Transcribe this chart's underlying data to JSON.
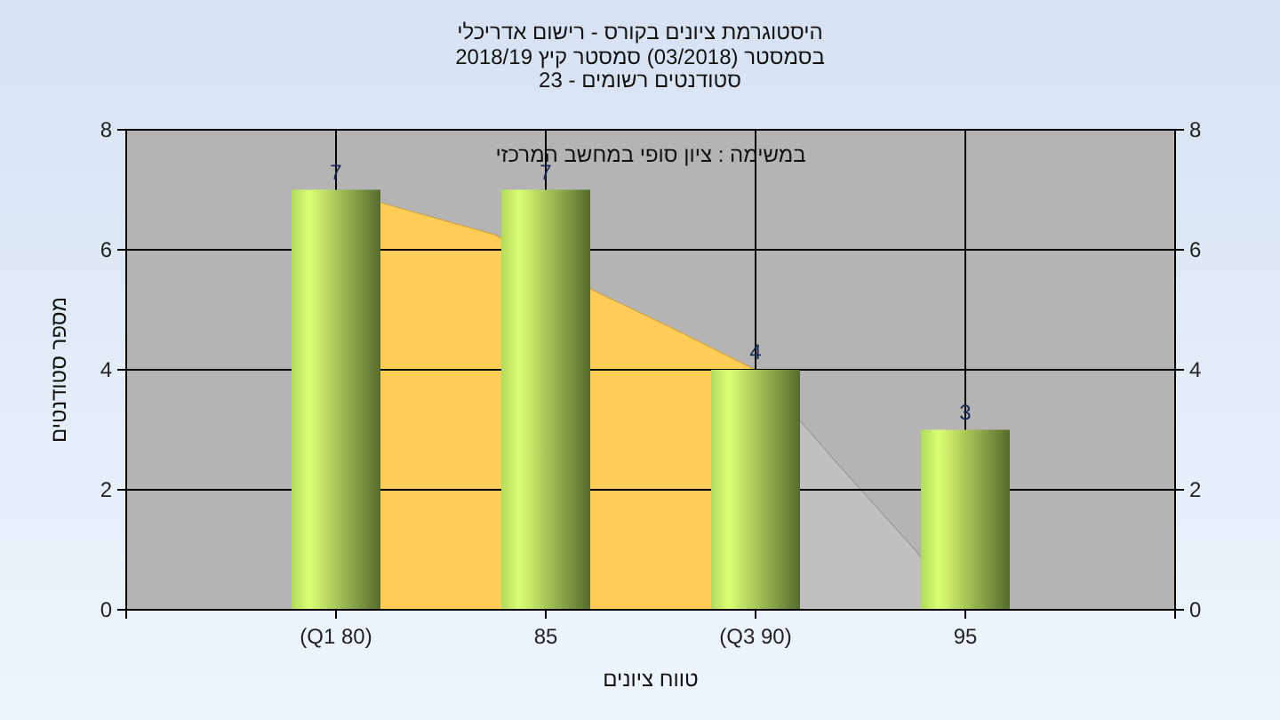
{
  "chart_data": {
    "type": "bar",
    "title": "היסטוגרמת ציונים בקורס - רישום אדריכלי",
    "subtitle": "בסמסטר  (03/2018)  סמסטר קיץ 2018/19\nסטודנטים רשומים - 23",
    "xlabel": "טווח ציונים",
    "ylabel": "מספר סטודנטים",
    "annotations": [
      "במשימה : ציון סופי במחשב המרכזי"
    ],
    "xlim": [
      75,
      100
    ],
    "xticks": [
      {
        "value": 80,
        "label": "(Q1 80)"
      },
      85,
      {
        "value": 90,
        "label": "(Q3 90)"
      },
      95
    ],
    "ylim": [
      0,
      8
    ],
    "yticks": [
      0,
      2,
      4,
      6,
      8
    ],
    "y2lim": [
      0,
      8
    ],
    "y2ticks": [
      0,
      2,
      4,
      6,
      8
    ],
    "grid": true,
    "series": [
      {
        "type": "area",
        "color": "#ffcc55",
        "x": [
          80,
          82,
          83.8,
          86.2,
          88,
          90
        ],
        "values": [
          7,
          6.6,
          6.25,
          5.3,
          4.7,
          4
        ]
      },
      {
        "type": "area",
        "color": "#c0c0c0",
        "x": [
          90,
          92,
          93.8,
          95
        ],
        "values": [
          4,
          2.4,
          1,
          0
        ]
      },
      {
        "color": "#8fb04a",
        "x": [
          80,
          85,
          90,
          95
        ],
        "values": [
          7,
          7,
          4,
          3
        ],
        "value_labels": [
          "7",
          "7",
          "4",
          "3"
        ]
      }
    ]
  }
}
